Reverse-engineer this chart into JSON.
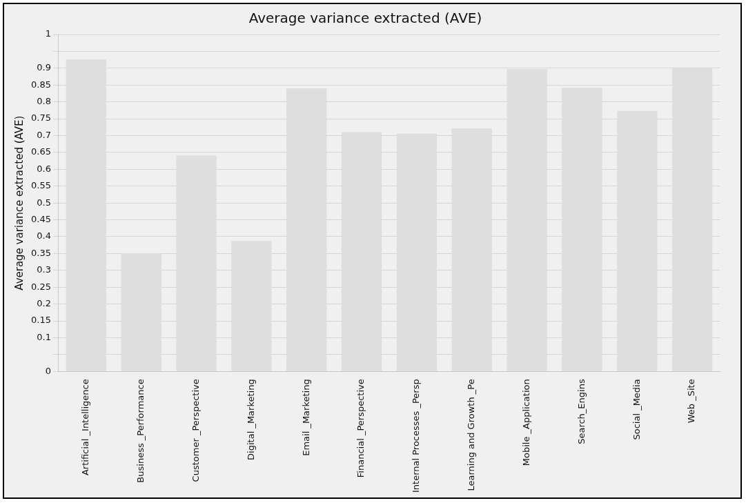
{
  "chart_data": {
    "type": "bar",
    "title": "Average variance extracted (AVE)",
    "ylabel": "Average variance extracted (AVE)",
    "categories": [
      "Artificial _Intelligence",
      "Business _Performance",
      "Customer _Perspective",
      "Digital _Marketing",
      "Email _Marketing",
      "Financial _Perspective",
      "Internal Processes _Persp",
      "Learning and Growth _Pe",
      "Mobile _Application",
      "Search_Engins",
      "Social _Media",
      "Web _Site"
    ],
    "values": [
      0.926,
      0.351,
      0.641,
      0.387,
      0.84,
      0.71,
      0.706,
      0.721,
      0.897,
      0.842,
      0.773,
      0.899
    ],
    "color": "#dedede",
    "ylim": [
      0,
      1
    ],
    "yticks": [
      0,
      {
        "value": 0.05,
        "label": null
      },
      0.1,
      0.15,
      0.2,
      0.25,
      0.3,
      0.35,
      0.4,
      0.45,
      0.5,
      0.55,
      0.6,
      0.65,
      0.7,
      0.75,
      0.8,
      0.85,
      0.9,
      {
        "value": 0.95,
        "label": null
      },
      1
    ],
    "grid": "y",
    "legend": false
  }
}
